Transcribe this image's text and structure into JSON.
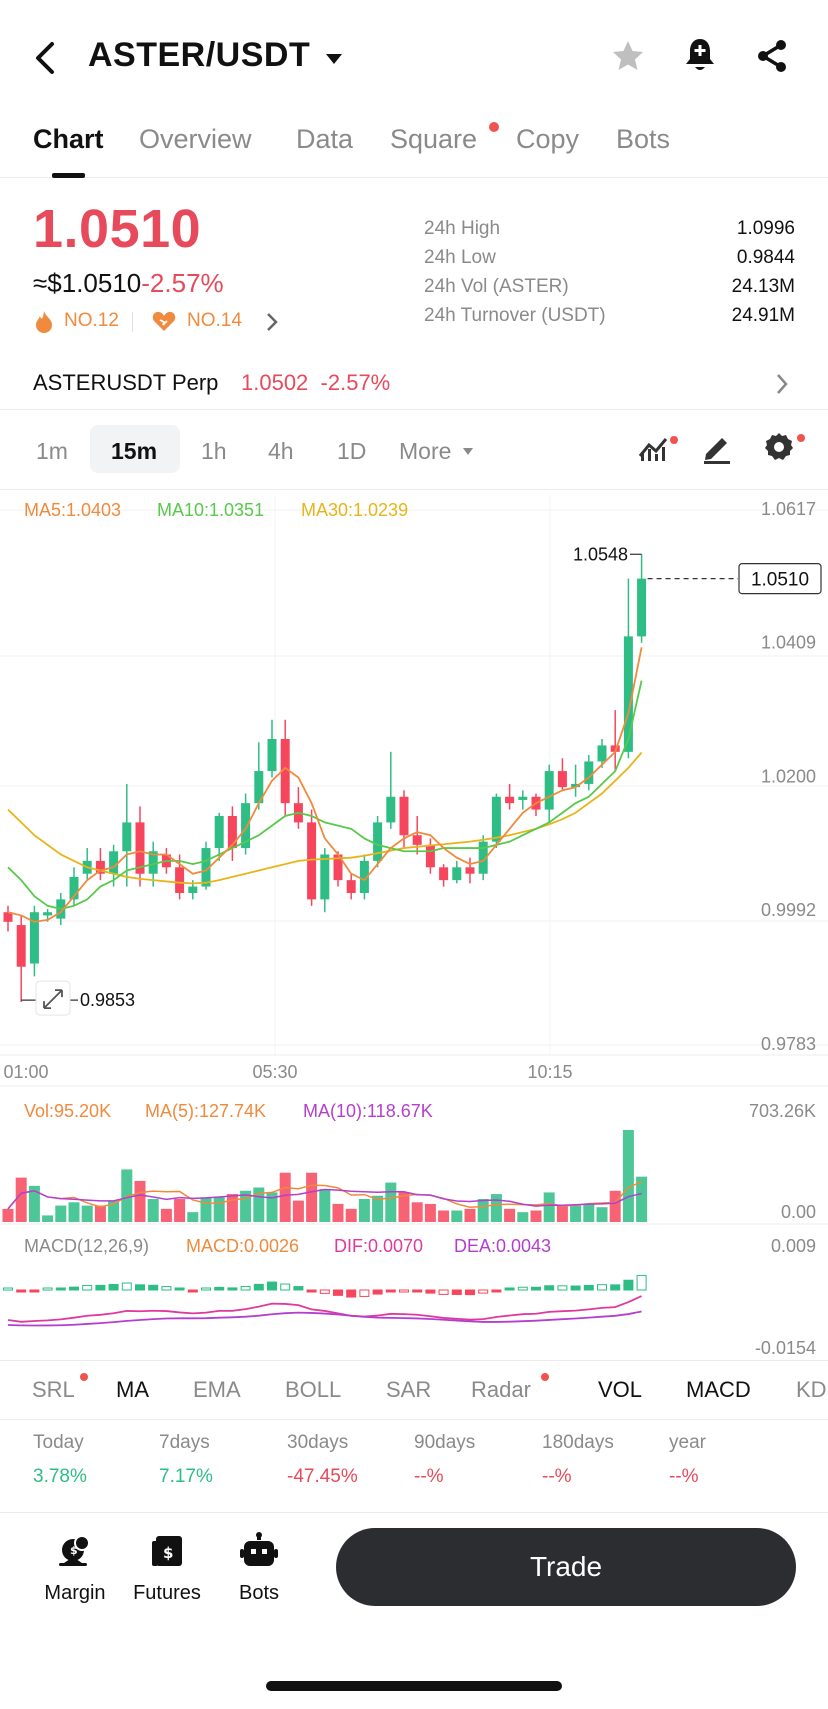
{
  "header": {
    "pair": "ASTER/USDT",
    "icons": [
      "back-icon",
      "caret-down-icon",
      "star-icon",
      "bell-icon",
      "share-icon"
    ]
  },
  "tabs": [
    {
      "label": "Chart",
      "active": true
    },
    {
      "label": "Overview"
    },
    {
      "label": "Data"
    },
    {
      "label": "Square",
      "dot": true
    },
    {
      "label": "Copy"
    },
    {
      "label": "Bots"
    }
  ],
  "price": {
    "last": "1.0510",
    "usd": "≈$1.0510",
    "change": "-2.57%",
    "rank1": "NO.12",
    "rank2": "NO.14"
  },
  "stats": {
    "high_label": "24h High",
    "high": "1.0996",
    "low_label": "24h Low",
    "low": "0.9844",
    "vol_label": "24h Vol (ASTER)",
    "vol": "24.13M",
    "turnover_label": "24h Turnover (USDT)",
    "turnover": "24.91M"
  },
  "perp": {
    "name": "ASTERUSDT Perp",
    "price": "1.0502",
    "change": "-2.57%"
  },
  "intervals": [
    "1m",
    "15m",
    "1h",
    "4h",
    "1D",
    "More"
  ],
  "active_interval": "15m",
  "ma_legend": {
    "ma5": "MA5:1.0403",
    "ma10": "MA10:1.0351",
    "ma30": "MA30:1.0239"
  },
  "colors": {
    "up": "#2ebd85",
    "down": "#f6465d",
    "ma5": "#f08a3c",
    "ma10": "#58c94a",
    "ma30": "#e8b41a",
    "purple": "#b43fcf",
    "pink": "#e0399e"
  },
  "chart_data": {
    "type": "candlestick",
    "y_ticks": [
      "1.0617",
      "1.0409",
      "1.0200",
      "0.9992",
      "0.9783"
    ],
    "x_ticks": [
      "01:00",
      "05:30",
      "10:15"
    ],
    "high_marker": "1.0548",
    "low_marker": "0.9853",
    "last_price_label": "1.0510",
    "ylim": [
      0.9783,
      1.0617
    ],
    "candles": [
      [
        0.999,
        1.0,
        0.996,
        0.9975
      ],
      [
        0.997,
        0.9985,
        0.985,
        0.9905
      ],
      [
        0.991,
        1.0,
        0.989,
        0.999
      ],
      [
        0.9985,
        0.9995,
        0.9975,
        0.999
      ],
      [
        0.998,
        1.002,
        0.997,
        1.001
      ],
      [
        1.001,
        1.006,
        1.0,
        1.0045
      ],
      [
        1.005,
        1.009,
        1.004,
        1.007
      ],
      [
        1.007,
        1.009,
        1.004,
        1.005
      ],
      [
        1.005,
        1.0095,
        1.003,
        1.0085
      ],
      [
        1.0085,
        1.019,
        1.003,
        1.013
      ],
      [
        1.013,
        1.0155,
        1.003,
        1.005
      ],
      [
        1.005,
        1.01,
        1.003,
        1.0085
      ],
      [
        1.008,
        1.009,
        1.005,
        1.006
      ],
      [
        1.006,
        1.008,
        1.001,
        1.002
      ],
      [
        1.002,
        1.004,
        1.001,
        1.003
      ],
      [
        1.003,
        1.01,
        1.0025,
        1.009
      ],
      [
        1.009,
        1.0145,
        1.007,
        1.014
      ],
      [
        1.014,
        1.0155,
        1.007,
        1.009
      ],
      [
        1.009,
        1.0175,
        1.008,
        1.016
      ],
      [
        1.016,
        1.0255,
        1.015,
        1.021
      ],
      [
        1.021,
        1.029,
        1.02,
        1.026
      ],
      [
        1.026,
        1.029,
        1.014,
        1.016
      ],
      [
        1.016,
        1.0185,
        1.012,
        1.013
      ],
      [
        1.013,
        1.015,
        1.0,
        1.001
      ],
      [
        1.001,
        1.009,
        0.999,
        1.008
      ],
      [
        1.008,
        1.0085,
        1.003,
        1.004
      ],
      [
        1.004,
        1.005,
        1.001,
        1.002
      ],
      [
        1.002,
        1.008,
        1.001,
        1.007
      ],
      [
        1.007,
        1.014,
        1.006,
        1.013
      ],
      [
        1.013,
        1.024,
        1.012,
        1.017
      ],
      [
        1.017,
        1.018,
        1.009,
        1.011
      ],
      [
        1.011,
        1.014,
        1.008,
        1.0095
      ],
      [
        1.0095,
        1.0105,
        1.005,
        1.006
      ],
      [
        1.006,
        1.0065,
        1.003,
        1.004
      ],
      [
        1.004,
        1.007,
        1.0035,
        1.006
      ],
      [
        1.006,
        1.0075,
        1.0035,
        1.005
      ],
      [
        1.005,
        1.011,
        1.004,
        1.01
      ],
      [
        1.01,
        1.0175,
        1.009,
        1.017
      ],
      [
        1.017,
        1.019,
        1.015,
        1.016
      ],
      [
        1.0165,
        1.018,
        1.015,
        1.017
      ],
      [
        1.017,
        1.0175,
        1.014,
        1.015
      ],
      [
        1.015,
        1.022,
        1.013,
        1.021
      ],
      [
        1.021,
        1.023,
        1.018,
        1.0185
      ],
      [
        1.0185,
        1.022,
        1.017,
        1.019
      ],
      [
        1.019,
        1.0235,
        1.018,
        1.0225
      ],
      [
        1.0225,
        1.026,
        1.0215,
        1.025
      ],
      [
        1.025,
        1.0305,
        1.021,
        1.024
      ],
      [
        1.024,
        1.051,
        1.023,
        1.042
      ],
      [
        1.042,
        1.0548,
        1.041,
        1.051
      ]
    ],
    "ma5": [
      0.999,
      0.9985,
      0.9975,
      0.9978,
      0.999,
      1.0015,
      1.004,
      1.0055,
      1.006,
      1.008,
      1.0085,
      1.008,
      1.008,
      1.0065,
      1.005,
      1.0055,
      1.0075,
      1.0095,
      1.012,
      1.016,
      1.0195,
      1.0215,
      1.02,
      1.016,
      1.0105,
      1.008,
      1.005,
      1.004,
      1.0065,
      1.009,
      1.0105,
      1.0115,
      1.011,
      1.009,
      1.0075,
      1.0065,
      1.007,
      1.0095,
      1.012,
      1.0145,
      1.016,
      1.017,
      1.018,
      1.0185,
      1.02,
      1.022,
      1.024,
      1.03,
      1.0403
    ],
    "ma10": [
      1.006,
      1.004,
      1.0015,
      1.0,
      0.9995,
      1.0,
      1.001,
      1.003,
      1.004,
      1.0055,
      1.006,
      1.0065,
      1.007,
      1.007,
      1.0065,
      1.007,
      1.008,
      1.009,
      1.01,
      1.011,
      1.0125,
      1.014,
      1.0145,
      1.014,
      1.013,
      1.0125,
      1.012,
      1.0105,
      1.0095,
      1.009,
      1.0085,
      1.0085,
      1.0085,
      1.009,
      1.009,
      1.009,
      1.009,
      1.0095,
      1.01,
      1.011,
      1.012,
      1.013,
      1.0145,
      1.016,
      1.017,
      1.019,
      1.021,
      1.026,
      1.0351
    ],
    "ma30": [
      1.015,
      1.013,
      1.011,
      1.0095,
      1.008,
      1.007,
      1.006,
      1.0055,
      1.005,
      1.0045,
      1.0042,
      1.004,
      1.0038,
      1.0036,
      1.0035,
      1.0036,
      1.004,
      1.0045,
      1.005,
      1.0055,
      1.006,
      1.0065,
      1.007,
      1.0072,
      1.0073,
      1.0074,
      1.0075,
      1.0078,
      1.0082,
      1.0086,
      1.009,
      1.0092,
      1.0094,
      1.0096,
      1.0098,
      1.01,
      1.0103,
      1.0106,
      1.011,
      1.0115,
      1.012,
      1.0127,
      1.0135,
      1.0145,
      1.016,
      1.0175,
      1.0195,
      1.0215,
      1.0239
    ],
    "volume_legend": {
      "vol": "Vol:95.20K",
      "ma5": "MA(5):127.74K",
      "ma10": "MA(10):118.67K",
      "max": "703.26K",
      "min": "0.00"
    },
    "macd_legend": {
      "name": "MACD(12,26,9)",
      "macd": "MACD:0.0026",
      "dif": "DIF:0.0070",
      "dea": "DEA:0.0043",
      "max": "0.009",
      "min": "-0.0154"
    }
  },
  "indicators": [
    {
      "label": "SRL",
      "dot": true
    },
    {
      "label": "MA",
      "active": true
    },
    {
      "label": "EMA"
    },
    {
      "label": "BOLL"
    },
    {
      "label": "SAR"
    },
    {
      "label": "Radar",
      "dot": true
    },
    {
      "label": "VOL",
      "active": true
    },
    {
      "label": "MACD",
      "active": true
    },
    {
      "label": "KD"
    }
  ],
  "performance": [
    {
      "label": "Today",
      "value": "3.78%",
      "up": true
    },
    {
      "label": "7days",
      "value": "7.17%",
      "up": true
    },
    {
      "label": "30days",
      "value": "-47.45%",
      "up": false
    },
    {
      "label": "90days",
      "value": "--%",
      "up": false
    },
    {
      "label": "180days",
      "value": "--%",
      "up": false
    },
    {
      "label": "year",
      "value": "--%",
      "up": false
    }
  ],
  "bottom_nav": {
    "margin": "Margin",
    "futures": "Futures",
    "bots": "Bots",
    "trade": "Trade"
  }
}
